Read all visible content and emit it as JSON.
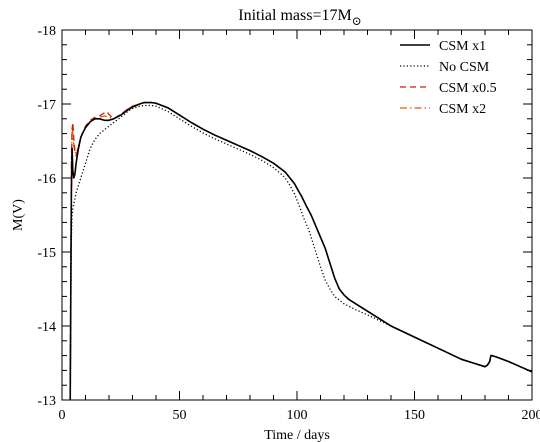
{
  "chart_data": {
    "type": "line",
    "title": "Initial mass=17M",
    "title_subscript_symbol": "⊙",
    "xlabel": "Time / days",
    "ylabel": "M(V)",
    "xlim": [
      0,
      200
    ],
    "ylim": [
      -13,
      -18
    ],
    "y_axis_inverted": true,
    "x_ticks": [
      0,
      50,
      100,
      150,
      200
    ],
    "x_tick_labels": [
      "0",
      "50",
      "100",
      "150",
      "200"
    ],
    "y_ticks": [
      -18,
      -17,
      -16,
      -15,
      -14,
      -13
    ],
    "y_tick_labels": [
      "-18",
      "-17",
      "-16",
      "-15",
      "-14",
      "-13"
    ],
    "grid": false,
    "legend_position": "top-right",
    "series": [
      {
        "name": "CSM x1",
        "color": "#000000",
        "style": "solid",
        "x": [
          3.5,
          3.8,
          4.0,
          4.3,
          4.6,
          5.0,
          5.5,
          6.0,
          7.0,
          8.0,
          9.0,
          10.0,
          11.0,
          12.0,
          13.0,
          14.0,
          16.0,
          18.0,
          20.0,
          22.0,
          25.0,
          28.0,
          30.0,
          33.0,
          35.0,
          38.0,
          40.0,
          45.0,
          50.0,
          55.0,
          60.0,
          65.0,
          70.0,
          75.0,
          80.0,
          85.0,
          90.0,
          95.0,
          97.0,
          99.0,
          100.0,
          102.0,
          104.0,
          106.0,
          108.0,
          110.0,
          112.0,
          114.0,
          116.0,
          118.0,
          120.0,
          122.0,
          125.0,
          130.0,
          135.0,
          140.0,
          150.0,
          160.0,
          170.0,
          175.0,
          180.0,
          181.0,
          182.0,
          182.5,
          183.0,
          185.0,
          190.0,
          195.0,
          200.0
        ],
        "y": [
          -13.0,
          -14.8,
          -15.8,
          -16.4,
          -16.1,
          -16.0,
          -16.05,
          -16.2,
          -16.4,
          -16.55,
          -16.62,
          -16.68,
          -16.72,
          -16.76,
          -16.78,
          -16.8,
          -16.8,
          -16.78,
          -16.78,
          -16.8,
          -16.85,
          -16.92,
          -16.96,
          -17.0,
          -17.02,
          -17.02,
          -17.01,
          -16.95,
          -16.85,
          -16.75,
          -16.66,
          -16.58,
          -16.51,
          -16.44,
          -16.37,
          -16.29,
          -16.2,
          -16.08,
          -16.0,
          -15.92,
          -15.86,
          -15.75,
          -15.62,
          -15.5,
          -15.35,
          -15.2,
          -15.05,
          -14.85,
          -14.65,
          -14.5,
          -14.42,
          -14.36,
          -14.3,
          -14.2,
          -14.1,
          -14.0,
          -13.85,
          -13.7,
          -13.55,
          -13.5,
          -13.45,
          -13.47,
          -13.52,
          -13.6,
          -13.6,
          -13.58,
          -13.52,
          -13.45,
          -13.38
        ]
      },
      {
        "name": "No CSM",
        "color": "#000000",
        "style": "dotted",
        "x": [
          3.5,
          3.8,
          4.0,
          4.3,
          4.6,
          5.0,
          5.5,
          6.0,
          7.0,
          8.0,
          9.0,
          10.0,
          12.0,
          14.0,
          16.0,
          18.0,
          20.0,
          22.0,
          25.0,
          28.0,
          30.0,
          33.0,
          35.0,
          38.0,
          40.0,
          45.0,
          50.0,
          55.0,
          60.0,
          65.0,
          70.0,
          75.0,
          80.0,
          85.0,
          90.0,
          93.0,
          95.0,
          97.0,
          99.0,
          101.0,
          103.0,
          105.0,
          108.0,
          110.0,
          112.0,
          114.0,
          116.0,
          118.0,
          120.0,
          125.0,
          130.0,
          140.0,
          150.0,
          160.0,
          170.0,
          175.0,
          180.0,
          181.0,
          182.0,
          182.5,
          183.0,
          185.0,
          190.0,
          195.0,
          200.0
        ],
        "y": [
          -13.0,
          -14.5,
          -15.2,
          -15.5,
          -15.58,
          -15.65,
          -15.72,
          -15.8,
          -15.9,
          -16.0,
          -16.1,
          -16.2,
          -16.4,
          -16.52,
          -16.6,
          -16.65,
          -16.7,
          -16.75,
          -16.82,
          -16.9,
          -16.94,
          -16.97,
          -16.98,
          -16.98,
          -16.97,
          -16.9,
          -16.8,
          -16.7,
          -16.61,
          -16.53,
          -16.46,
          -16.39,
          -16.32,
          -16.24,
          -16.14,
          -16.06,
          -16.0,
          -15.9,
          -15.78,
          -15.62,
          -15.45,
          -15.3,
          -15.0,
          -14.8,
          -14.62,
          -14.5,
          -14.4,
          -14.35,
          -14.3,
          -14.22,
          -14.15,
          -14.0,
          -13.85,
          -13.7,
          -13.55,
          -13.5,
          -13.45,
          -13.47,
          -13.52,
          -13.6,
          -13.6,
          -13.58,
          -13.52,
          -13.45,
          -13.38
        ]
      },
      {
        "name": "CSM x0.5",
        "color": "#cc2200",
        "style": "dashed",
        "x": [
          3.5,
          3.8,
          4.0,
          4.3,
          4.6,
          5.0,
          5.5,
          6.0,
          7.0,
          8.0,
          10.0,
          12.0,
          14.0,
          16.0,
          18.0,
          19.0,
          20.0,
          22.0,
          25.0,
          28.0,
          30.0,
          33.0,
          35.0,
          38.0,
          40.0,
          45.0,
          50.0,
          55.0,
          60.0,
          65.0,
          70.0,
          75.0,
          80.0,
          85.0,
          90.0,
          95.0,
          97.0,
          99.0,
          100.0,
          102.0,
          104.0,
          106.0,
          108.0,
          110.0,
          112.0,
          114.0,
          116.0,
          118.0,
          120.0,
          122.0,
          125.0,
          130.0,
          135.0,
          140.0,
          150.0,
          160.0,
          170.0,
          175.0,
          180.0,
          181.0,
          182.0,
          182.5,
          183.0,
          185.0,
          190.0,
          195.0,
          200.0
        ],
        "y": [
          -13.0,
          -15.0,
          -16.1,
          -16.65,
          -16.75,
          -16.55,
          -16.35,
          -16.3,
          -16.42,
          -16.55,
          -16.7,
          -16.78,
          -16.82,
          -16.84,
          -16.88,
          -16.9,
          -16.86,
          -16.8,
          -16.86,
          -16.93,
          -16.97,
          -17.0,
          -17.02,
          -17.02,
          -17.01,
          -16.95,
          -16.85,
          -16.75,
          -16.66,
          -16.58,
          -16.51,
          -16.44,
          -16.37,
          -16.29,
          -16.2,
          -16.08,
          -16.0,
          -15.92,
          -15.86,
          -15.75,
          -15.62,
          -15.5,
          -15.35,
          -15.2,
          -15.05,
          -14.85,
          -14.65,
          -14.5,
          -14.42,
          -14.36,
          -14.3,
          -14.2,
          -14.1,
          -14.0,
          -13.85,
          -13.7,
          -13.55,
          -13.5,
          -13.45,
          -13.47,
          -13.52,
          -13.6,
          -13.6,
          -13.58,
          -13.52,
          -13.45,
          -13.38
        ]
      },
      {
        "name": "CSM x2",
        "color": "#e05a10",
        "style": "dashdot",
        "x": [
          3.5,
          3.8,
          4.0,
          4.3,
          4.6,
          5.0,
          5.5,
          6.0,
          7.0,
          8.0,
          10.0,
          12.0,
          14.0,
          16.0,
          18.0,
          20.0,
          22.0,
          25.0,
          28.0,
          30.0,
          33.0,
          35.0,
          38.0,
          40.0,
          45.0,
          50.0,
          55.0,
          60.0,
          65.0,
          70.0,
          75.0,
          80.0,
          85.0,
          90.0,
          95.0,
          97.0,
          99.0,
          100.0,
          102.0,
          104.0,
          106.0,
          108.0,
          110.0,
          112.0,
          114.0,
          116.0,
          118.0,
          120.0,
          122.0,
          125.0,
          130.0,
          135.0,
          140.0,
          150.0,
          160.0,
          170.0,
          175.0,
          180.0,
          181.0,
          182.0,
          182.5,
          183.0,
          185.0,
          190.0,
          195.0,
          200.0
        ],
        "y": [
          -13.0,
          -15.2,
          -16.3,
          -16.7,
          -16.6,
          -16.45,
          -16.35,
          -16.33,
          -16.42,
          -16.55,
          -16.68,
          -16.76,
          -16.8,
          -16.82,
          -16.84,
          -16.82,
          -16.8,
          -16.86,
          -16.93,
          -16.97,
          -17.0,
          -17.02,
          -17.02,
          -17.01,
          -16.95,
          -16.85,
          -16.75,
          -16.66,
          -16.58,
          -16.51,
          -16.44,
          -16.37,
          -16.29,
          -16.2,
          -16.08,
          -16.0,
          -15.92,
          -15.86,
          -15.75,
          -15.62,
          -15.5,
          -15.35,
          -15.2,
          -15.05,
          -14.85,
          -14.65,
          -14.5,
          -14.42,
          -14.36,
          -14.3,
          -14.2,
          -14.1,
          -14.0,
          -13.85,
          -13.7,
          -13.55,
          -13.5,
          -13.45,
          -13.47,
          -13.52,
          -13.6,
          -13.6,
          -13.58,
          -13.52,
          -13.45,
          -13.38
        ]
      }
    ]
  }
}
